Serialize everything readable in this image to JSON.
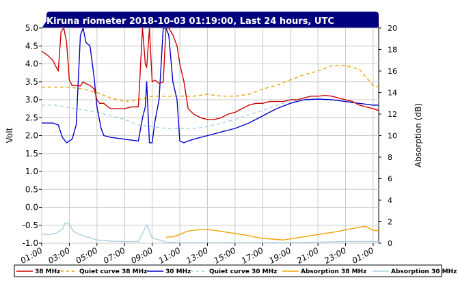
{
  "chart_data": {
    "type": "line",
    "title": "Kiruna riometer 2018-10-03 01:19:00, Last 24 hours, UTC",
    "ylabel": "Volt",
    "y2label": "Absorption (dB)",
    "ylim": [
      -1.0,
      5.0
    ],
    "y2lim": [
      0,
      20
    ],
    "xlim": [
      0,
      24.4
    ],
    "yticks": [
      "5.0",
      "4.5",
      "4.0",
      "3.5",
      "3.0",
      "2.5",
      "2.0",
      "1.5",
      "1.0",
      "0.5",
      "0.0",
      "-0.5",
      "-1.0"
    ],
    "y2ticks": [
      "20",
      "18",
      "16",
      "14",
      "12",
      "10",
      "8",
      "6",
      "4",
      "2",
      "0"
    ],
    "xticks": [
      "01:00",
      "03:00",
      "05:00",
      "07:00",
      "09:00",
      "11:00",
      "13:00",
      "15:00",
      "17:00",
      "19:00",
      "21:00",
      "23:00",
      "01:00"
    ],
    "grid": true,
    "legend_position": "bottom",
    "colors": {
      "title_bg": "#00007f",
      "red": "#cc0000",
      "orange": "#f0a000",
      "blue": "#0000cc",
      "light_blue": "#a8d0e0",
      "grid": "#c8c8c8"
    },
    "legend": [
      {
        "label": "38 MHz",
        "color": "#cc0000",
        "dash": false
      },
      {
        "label": "Quiet curve 38 MHz",
        "color": "#f0a000",
        "dash": true
      },
      {
        "label": "30 MHz",
        "color": "#0000cc",
        "dash": false
      },
      {
        "label": "Quiet curve 30 MHz",
        "color": "#a8d0e0",
        "dash": true
      },
      {
        "label": "Absorption 38 MHz",
        "color": "#f0a000",
        "dash": false
      },
      {
        "label": "Absorption 30 MHz",
        "color": "#a8d0e0",
        "dash": false
      }
    ],
    "series": [
      {
        "name": "38 MHz",
        "axis": "left",
        "color": "#cc0000",
        "dash": false,
        "x": [
          0.0,
          0.4,
          0.8,
          1.2,
          1.4,
          1.6,
          1.8,
          2.0,
          2.2,
          2.5,
          2.8,
          3.0,
          3.2,
          3.5,
          3.8,
          4.0,
          4.2,
          4.5,
          4.8,
          5.0,
          5.2,
          5.5,
          6.0,
          6.5,
          7.0,
          7.3,
          7.5,
          7.6,
          7.8,
          8.0,
          8.2,
          8.5,
          8.8,
          9.0,
          9.2,
          9.5,
          9.8,
          10.0,
          10.3,
          10.6,
          11.0,
          11.5,
          12.0,
          12.5,
          13.0,
          13.5,
          14.0,
          14.5,
          15.0,
          15.5,
          16.0,
          16.5,
          17.0,
          17.5,
          18.0,
          18.5,
          19.0,
          19.5,
          20.0,
          20.5,
          21.0,
          21.5,
          22.0,
          22.5,
          23.0,
          23.5,
          24.0,
          24.4
        ],
        "y": [
          4.35,
          4.25,
          4.1,
          3.8,
          4.9,
          5.0,
          4.6,
          3.55,
          3.4,
          3.4,
          3.38,
          3.5,
          3.45,
          3.4,
          3.3,
          3.0,
          2.9,
          2.9,
          2.8,
          2.75,
          2.75,
          2.75,
          2.75,
          2.8,
          2.8,
          5.0,
          4.0,
          3.9,
          5.0,
          3.5,
          3.55,
          3.45,
          3.5,
          5.0,
          5.0,
          4.8,
          4.5,
          4.0,
          3.5,
          2.75,
          2.6,
          2.5,
          2.45,
          2.45,
          2.5,
          2.6,
          2.65,
          2.75,
          2.85,
          2.9,
          2.9,
          2.95,
          2.95,
          2.95,
          3.0,
          3.0,
          3.05,
          3.1,
          3.1,
          3.12,
          3.1,
          3.05,
          3.0,
          2.95,
          2.85,
          2.8,
          2.75,
          2.7
        ]
      },
      {
        "name": "Quiet curve 38 MHz",
        "axis": "left",
        "color": "#f0a000",
        "dash": true,
        "x": [
          0.0,
          1.0,
          2.0,
          3.0,
          4.0,
          5.0,
          6.0,
          7.0,
          8.0,
          9.0,
          10.0,
          11.0,
          12.0,
          13.0,
          14.0,
          15.0,
          16.0,
          17.0,
          18.0,
          19.0,
          20.0,
          21.0,
          22.0,
          23.0,
          24.0,
          24.4
        ],
        "y": [
          3.35,
          3.35,
          3.35,
          3.3,
          3.2,
          3.05,
          2.95,
          3.0,
          3.1,
          3.1,
          3.1,
          3.1,
          3.15,
          3.1,
          3.1,
          3.15,
          3.3,
          3.4,
          3.55,
          3.7,
          3.8,
          3.95,
          3.95,
          3.85,
          3.4,
          3.35
        ]
      },
      {
        "name": "30 MHz",
        "axis": "left",
        "color": "#0000cc",
        "dash": false,
        "x": [
          0.0,
          0.8,
          1.2,
          1.5,
          1.8,
          2.2,
          2.5,
          2.8,
          3.0,
          3.2,
          3.5,
          3.8,
          4.0,
          4.3,
          4.5,
          5.0,
          6.0,
          7.0,
          7.3,
          7.5,
          7.6,
          7.8,
          8.0,
          8.2,
          8.5,
          8.8,
          9.0,
          9.2,
          9.5,
          9.8,
          10.0,
          10.3,
          10.6,
          11.0,
          11.5,
          12.0,
          13.0,
          14.0,
          15.0,
          16.0,
          17.0,
          18.0,
          18.5,
          19.0,
          20.0,
          21.0,
          22.0,
          23.0,
          24.0,
          24.4
        ],
        "y": [
          2.35,
          2.35,
          2.3,
          1.95,
          1.8,
          1.9,
          2.3,
          4.8,
          5.0,
          4.6,
          4.5,
          3.6,
          2.8,
          2.2,
          2.0,
          1.95,
          1.9,
          1.85,
          2.5,
          2.8,
          3.5,
          1.8,
          1.8,
          2.4,
          3.0,
          5.0,
          5.0,
          4.8,
          3.5,
          3.0,
          1.85,
          1.8,
          1.85,
          1.9,
          1.95,
          2.0,
          2.1,
          2.2,
          2.35,
          2.55,
          2.75,
          2.9,
          2.95,
          3.0,
          3.02,
          3.0,
          2.95,
          2.9,
          2.85,
          2.85
        ]
      },
      {
        "name": "Quiet curve 30 MHz",
        "axis": "left",
        "color": "#a8d0e0",
        "dash": true,
        "x": [
          0.0,
          1.0,
          2.0,
          3.0,
          4.0,
          5.0,
          6.0,
          7.0,
          8.0,
          9.0,
          10.0,
          11.0,
          12.0,
          13.0,
          14.0,
          15.0,
          16.0,
          17.0,
          18.0,
          19.0,
          20.0,
          21.0,
          22.0,
          23.0,
          24.0,
          24.4
        ],
        "y": [
          2.85,
          2.85,
          2.78,
          2.72,
          2.65,
          2.55,
          2.45,
          2.3,
          2.25,
          2.2,
          2.2,
          2.2,
          2.25,
          2.35,
          2.45,
          2.58,
          2.7,
          2.85,
          2.95,
          3.0,
          3.0,
          3.0,
          2.95,
          2.9,
          2.85,
          2.85
        ]
      },
      {
        "name": "Absorption 38 MHz",
        "axis": "right",
        "color": "#f0a000",
        "dash": false,
        "x": [
          9.0,
          9.5,
          10.0,
          10.5,
          11.0,
          11.5,
          12.0,
          12.5,
          13.0,
          13.5,
          14.0,
          14.5,
          15.0,
          15.5,
          16.0,
          16.5,
          17.0,
          17.5,
          18.0,
          18.5,
          19.0,
          19.5,
          20.0,
          20.5,
          21.0,
          21.5,
          22.0,
          22.5,
          23.0,
          23.5,
          24.0,
          24.4
        ],
        "y": [
          0.55,
          0.6,
          0.8,
          1.1,
          1.2,
          1.25,
          1.25,
          1.2,
          1.1,
          1.0,
          0.9,
          0.8,
          0.7,
          0.55,
          0.45,
          0.4,
          0.35,
          0.3,
          0.4,
          0.5,
          0.6,
          0.7,
          0.8,
          0.9,
          1.0,
          1.1,
          1.25,
          1.35,
          1.5,
          1.55,
          1.2,
          1.15
        ]
      },
      {
        "name": "Absorption 30 MHz",
        "axis": "right",
        "color": "#a8d0e0",
        "dash": false,
        "x": [
          0.0,
          0.5,
          1.0,
          1.5,
          1.7,
          2.0,
          2.3,
          2.6,
          3.0,
          3.5,
          4.0,
          5.0,
          6.0,
          7.0,
          7.3,
          7.6,
          8.0,
          8.5,
          9.0,
          10.0,
          12.0,
          14.0,
          16.0,
          18.0,
          20.0,
          22.0,
          24.0,
          24.4
        ],
        "y": [
          0.85,
          0.8,
          0.9,
          1.3,
          1.9,
          1.8,
          1.1,
          0.9,
          0.7,
          0.5,
          0.3,
          0.2,
          0.15,
          0.15,
          0.9,
          1.7,
          0.5,
          0.3,
          0.1,
          0.05,
          0.05,
          0.05,
          0.05,
          0.05,
          0.1,
          0.15,
          0.15,
          0.15
        ]
      }
    ]
  }
}
